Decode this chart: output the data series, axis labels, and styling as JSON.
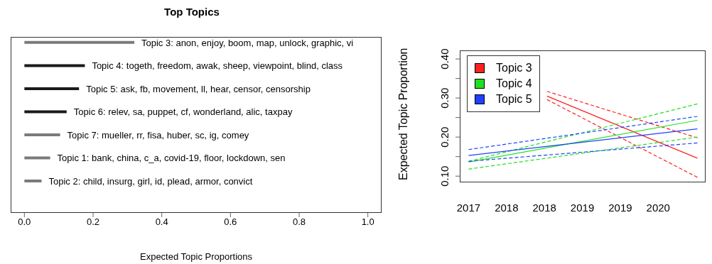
{
  "chart_data": [
    {
      "type": "bar",
      "orientation": "horizontal",
      "title": "Top Topics",
      "xlabel": "Expected Topic Proportions",
      "categories": [
        null,
        null,
        null,
        null,
        null,
        null,
        null
      ],
      "annotations": [
        "Topic 3: anon, enjoy, boom, map, unlock, graphic, vi",
        "Topic 4: togeth, freedom, awak, sheep, viewpoint, blind, class",
        "Topic 5: ask, fb, movement, ll, hear, censor, censorship",
        "Topic 6: relev, sa, puppet, cf, wonderland, alic, taxpay",
        "Topic 7: mueller, rr, fisa, huber, sc, ig, comey",
        "Topic 1: bank, china, c_a, covid-19, floor, lockdown, sen",
        "Topic 2: child, insurg, girl, id, plead, armor, convict"
      ],
      "values": [
        0.32,
        0.176,
        0.159,
        0.123,
        0.104,
        0.075,
        0.05
      ],
      "colors": [
        "#7a7a7a",
        "#1a1a1a",
        "#1a1a1a",
        "#1a1a1a",
        "#7a7a7a",
        "#7a7a7a",
        "#7a7a7a"
      ],
      "xlim": [
        -0.04,
        1.04
      ],
      "xticks": [
        {
          "value": 0,
          "label": "0.0"
        },
        0.2,
        0.4,
        0.6,
        0.8,
        {
          "value": 1,
          "label": "1.0"
        }
      ],
      "tick_labels": "x"
    },
    {
      "type": "line",
      "ylabel": "Expected Topic Proportion",
      "legend": "top left",
      "xlim": [
        2016.86,
        2020.75
      ],
      "xticks": [
        2017,
        {
          "value": 2017.6,
          "label": "2018"
        },
        {
          "value": 2018.2,
          "label": "2018"
        },
        {
          "value": 2018.8,
          "label": "2019"
        },
        {
          "value": 2019.4,
          "label": "2019"
        },
        {
          "value": 2020.0,
          "label": "2020"
        }
      ],
      "ylim": [
        0.084,
        0.422
      ],
      "yticks": [
        {
          "value": 0.1,
          "label": "0.10"
        },
        {
          "value": 0.15,
          "label": null
        },
        {
          "value": 0.2,
          "label": "0.20"
        },
        {
          "value": 0.25,
          "label": null
        },
        {
          "value": 0.3,
          "label": "0.30"
        },
        {
          "value": 0.35,
          "label": null
        },
        {
          "value": 0.4,
          "label": "0.40"
        }
      ],
      "series": [
        {
          "name": "Topic 3",
          "color": "#ff2020",
          "line_style": "solid",
          "x": [
            2018.24,
            2020.62
          ],
          "values": [
            0.305,
            0.146
          ]
        },
        {
          "color": "#ff2020",
          "line_style": "dashed",
          "x": [
            2018.24,
            2020.62
          ],
          "values": [
            0.317,
            0.198
          ]
        },
        {
          "color": "#ff2020",
          "line_style": "dashed",
          "x": [
            2018.24,
            2020.62
          ],
          "values": [
            0.296,
            0.097
          ]
        },
        {
          "name": "Topic 4",
          "color": "#20e020",
          "line_style": "solid",
          "x": [
            2017,
            2020.62
          ],
          "values": [
            0.136,
            0.243
          ]
        },
        {
          "color": "#20e020",
          "line_style": "dashed",
          "x": [
            2017,
            2020.62
          ],
          "values": [
            0.138,
            0.285
          ]
        },
        {
          "color": "#20e020",
          "line_style": "dashed",
          "x": [
            2017,
            2020.62
          ],
          "values": [
            0.118,
            0.2
          ]
        },
        {
          "name": "Topic 5",
          "color": "#2040ff",
          "line_style": "solid",
          "x": [
            2017,
            2020.62
          ],
          "values": [
            0.153,
            0.221
          ]
        },
        {
          "color": "#2040ff",
          "line_style": "dashed",
          "x": [
            2017,
            2020.62
          ],
          "values": [
            0.168,
            0.253
          ]
        },
        {
          "color": "#2040ff",
          "line_style": "dashed",
          "x": [
            2017,
            2020.62
          ],
          "values": [
            0.138,
            0.185
          ]
        }
      ]
    }
  ]
}
